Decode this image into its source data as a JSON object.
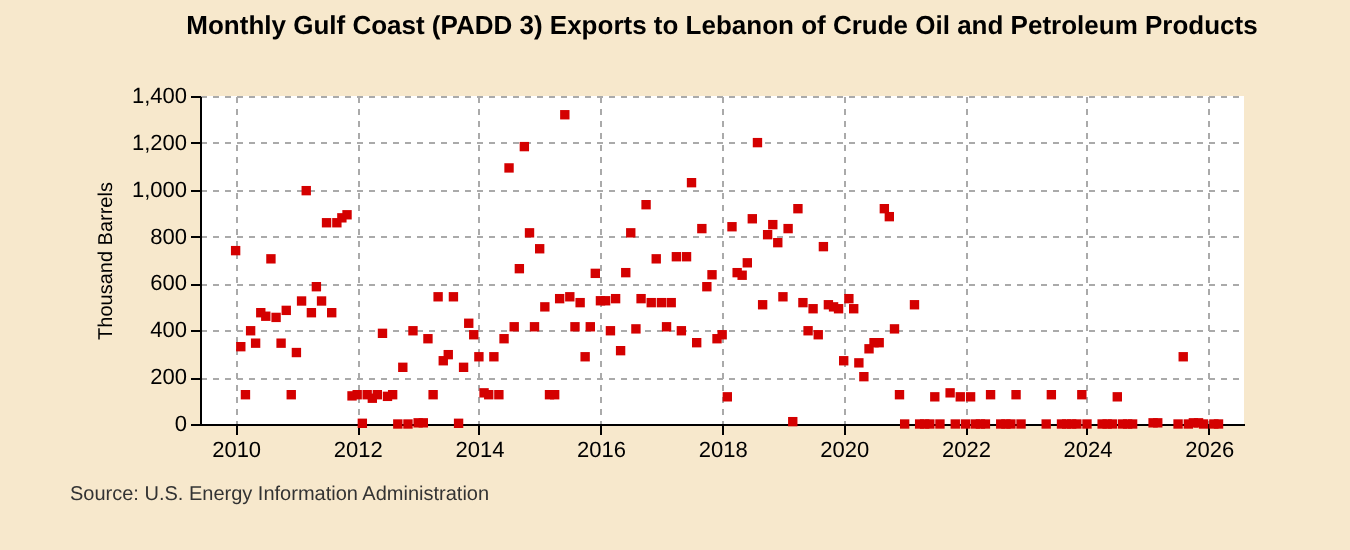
{
  "chart_data": {
    "type": "scatter",
    "title": "Monthly Gulf Coast (PADD 3) Exports to Lebanon of Crude Oil and Petroleum Products",
    "ylabel": "Thousand Barrels",
    "annotations": [
      "Source: U.S. Energy Information Administration"
    ],
    "x": [
      "2010-01",
      "2010-02",
      "2010-03",
      "2010-04",
      "2010-05",
      "2010-06",
      "2010-07",
      "2010-08",
      "2010-09",
      "2010-10",
      "2010-11",
      "2010-12",
      "2011-01",
      "2011-02",
      "2011-03",
      "2011-04",
      "2011-05",
      "2011-06",
      "2011-07",
      "2011-08",
      "2011-09",
      "2011-10",
      "2011-11",
      "2011-12",
      "2012-01",
      "2012-02",
      "2012-03",
      "2012-04",
      "2012-05",
      "2012-06",
      "2012-07",
      "2012-08",
      "2012-09",
      "2012-10",
      "2012-11",
      "2012-12",
      "2013-01",
      "2013-02",
      "2013-03",
      "2013-04",
      "2013-05",
      "2013-06",
      "2013-07",
      "2013-08",
      "2013-09",
      "2013-10",
      "2013-11",
      "2013-12",
      "2014-01",
      "2014-02",
      "2014-03",
      "2014-04",
      "2014-05",
      "2014-06",
      "2014-07",
      "2014-08",
      "2014-09",
      "2014-10",
      "2014-11",
      "2014-12",
      "2015-01",
      "2015-02",
      "2015-03",
      "2015-04",
      "2015-05",
      "2015-06",
      "2015-07",
      "2015-08",
      "2015-09",
      "2015-10",
      "2015-11",
      "2015-12",
      "2016-01",
      "2016-02",
      "2016-03",
      "2016-04",
      "2016-05",
      "2016-06",
      "2016-07",
      "2016-08",
      "2016-09",
      "2016-10",
      "2016-11",
      "2016-12",
      "2017-01",
      "2017-02",
      "2017-03",
      "2017-04",
      "2017-05",
      "2017-06",
      "2017-07",
      "2017-08",
      "2017-09",
      "2017-10",
      "2017-11",
      "2017-12",
      "2018-01",
      "2018-02",
      "2018-03",
      "2018-04",
      "2018-05",
      "2018-06",
      "2018-07",
      "2018-08",
      "2018-09",
      "2018-10",
      "2018-11",
      "2018-12",
      "2019-01",
      "2019-02",
      "2019-03",
      "2019-04",
      "2019-05",
      "2019-06",
      "2019-07",
      "2019-08",
      "2019-09",
      "2019-10",
      "2019-11",
      "2019-12",
      "2020-01",
      "2020-02",
      "2020-03",
      "2020-04",
      "2020-05",
      "2020-06",
      "2020-07",
      "2020-08",
      "2020-09",
      "2020-10",
      "2020-11",
      "2020-12",
      "2021-01",
      "2021-03",
      "2021-04",
      "2021-05",
      "2021-06",
      "2021-07",
      "2021-08",
      "2021-10",
      "2021-11",
      "2021-12",
      "2022-01",
      "2022-02",
      "2022-03",
      "2022-04",
      "2022-05",
      "2022-06",
      "2022-08",
      "2022-09",
      "2022-10",
      "2022-11",
      "2022-12",
      "2023-05",
      "2023-06",
      "2023-08",
      "2023-09",
      "2023-10",
      "2023-11",
      "2023-12",
      "2024-01",
      "2024-04",
      "2024-05",
      "2024-06",
      "2024-07",
      "2024-08",
      "2024-09",
      "2024-10",
      "2025-02",
      "2025-03",
      "2025-07",
      "2025-08",
      "2025-09",
      "2025-10",
      "2025-11",
      "2025-12",
      "2026-02",
      "2026-03"
    ],
    "series": [
      {
        "color": "#d40000",
        "values": [
          740,
          330,
          125,
          398,
          345,
          475,
          460,
          705,
          455,
          345,
          485,
          125,
          305,
          525,
          996,
          475,
          586,
          525,
          859,
          475,
          859,
          880,
          893,
          120,
          125,
          3,
          125,
          110,
          125,
          387,
          118,
          125,
          0,
          242,
          0,
          398,
          5,
          5,
          364,
          125,
          543,
          270,
          296,
          543,
          3,
          242,
          430,
          381,
          287,
          133,
          125,
          287,
          125,
          364,
          1093,
          415,
          663,
          1184,
          816,
          415,
          748,
          500,
          125,
          125,
          535,
          1320,
          543,
          415,
          518,
          287,
          415,
          643,
          526,
          526,
          398,
          535,
          313,
          646,
          816,
          406,
          535,
          936,
          518,
          705,
          518,
          415,
          518,
          714,
          398,
          714,
          1030,
          347,
          834,
          586,
          637,
          364,
          381,
          116,
          842,
          646,
          635,
          688,
          876,
          1201,
          509,
          808,
          851,
          774,
          543,
          834,
          10,
          919,
          518,
          398,
          492,
          381,
          757,
          509,
          500,
          492,
          270,
          535,
          492,
          261,
          202,
          321,
          347,
          347,
          919,
          885,
          406,
          125,
          0,
          509,
          0,
          0,
          0,
          116,
          0,
          133,
          0,
          116,
          0,
          116,
          0,
          0,
          0,
          125,
          0,
          0,
          0,
          125,
          0,
          0,
          125,
          0,
          0,
          0,
          0,
          125,
          0,
          0,
          0,
          0,
          116,
          0,
          0,
          0,
          5,
          5,
          0,
          287,
          0,
          5,
          5,
          0,
          0,
          0
        ]
      }
    ],
    "xlim": [
      "2009-06",
      "2026-08"
    ],
    "xticks": [
      "2010",
      "2012",
      "2014",
      "2016",
      "2018",
      "2020",
      "2022",
      "2024",
      "2026"
    ],
    "ylim": [
      0,
      1400
    ],
    "yticks": [
      0,
      200,
      400,
      600,
      800,
      {
        "value": 1000,
        "label": "1,000"
      },
      {
        "value": 1200,
        "label": "1,200"
      },
      {
        "value": 1400,
        "label": "1,400"
      }
    ],
    "grid": true,
    "marker": "square"
  }
}
